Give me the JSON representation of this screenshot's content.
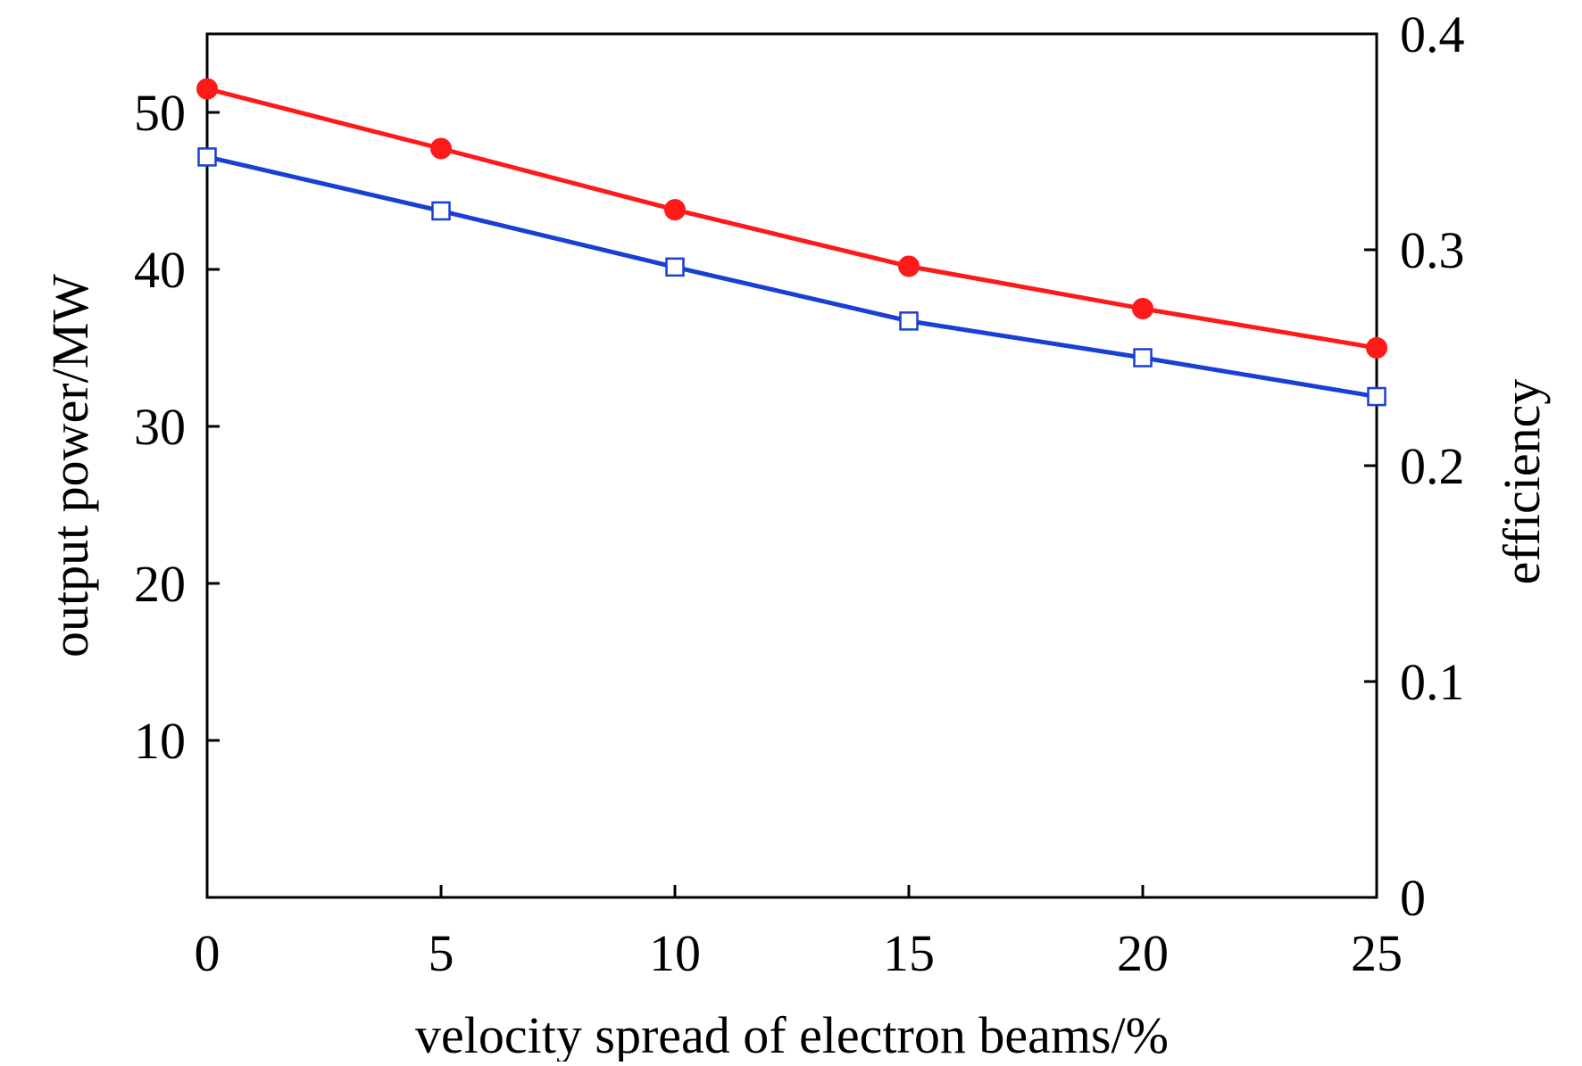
{
  "chart_data": {
    "type": "line",
    "xlabel": "velocity spread of electron beams/%",
    "ylabel_left": "output power/MW",
    "ylabel_right": "efficiency",
    "xlim": [
      0,
      25
    ],
    "ylim_left": [
      0,
      55
    ],
    "ylim_right": [
      0,
      0.4
    ],
    "x_ticks": [
      "0",
      "5",
      "10",
      "15",
      "20",
      "25"
    ],
    "y_left_ticks": [
      "10",
      "20",
      "30",
      "40",
      "50"
    ],
    "y_right_ticks": [
      "0",
      "0.1",
      "0.2",
      "0.3",
      "0.4"
    ],
    "x": [
      0,
      5,
      10,
      15,
      20,
      25
    ],
    "series": [
      {
        "axis": "left",
        "marker": "filled-circle",
        "color": "#ff1a1a",
        "values": [
          51.5,
          47.7,
          43.8,
          40.2,
          37.5,
          35.0
        ]
      },
      {
        "axis": "right",
        "marker": "open-square",
        "color": "#1a3fd6",
        "values": [
          0.343,
          0.318,
          0.292,
          0.267,
          0.25,
          0.232
        ]
      }
    ],
    "grid": false,
    "legend": "none"
  }
}
